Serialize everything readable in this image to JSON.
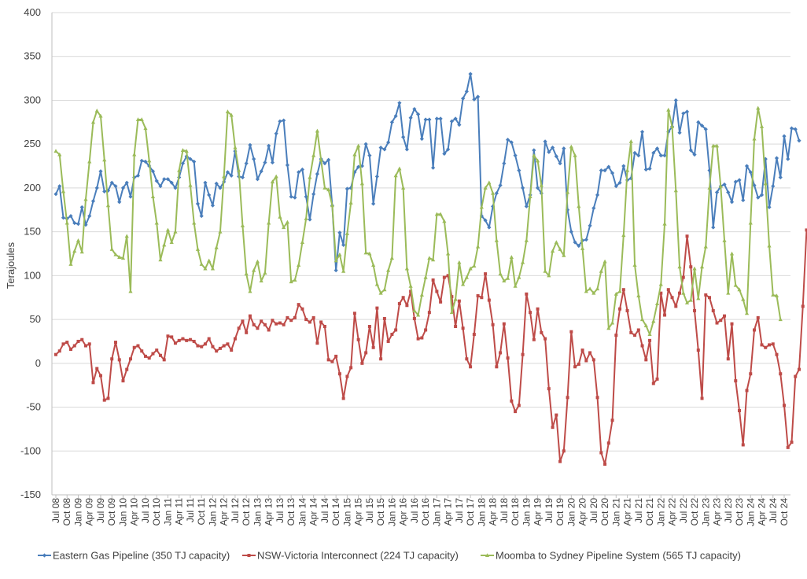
{
  "chart_data": {
    "type": "line",
    "ylabel": "Terajoules",
    "ylim": [
      -150,
      400
    ],
    "yticks": [
      400,
      350,
      300,
      250,
      200,
      150,
      100,
      50,
      0,
      -50,
      -100,
      -150
    ],
    "grid": "horizontal",
    "legend_position": "bottom",
    "x_tick_labels": [
      "Jul 08",
      "Oct 08",
      "Jan 09",
      "Apr 09",
      "Jul 09",
      "Oct 09",
      "Jan 10",
      "Apr 10",
      "Jul 10",
      "Oct 10",
      "Jan 11",
      "Apr 11",
      "Jul 11",
      "Oct 11",
      "Jan 12",
      "Apr 12",
      "Jul 12",
      "Oct 12",
      "Jan 13",
      "Apr 13",
      "Jul 13",
      "Oct 13",
      "Jan 14",
      "Apr 14",
      "Jul 14",
      "Oct 14",
      "Jan 15",
      "Apr 15",
      "Jul 15",
      "Oct 15",
      "Jan 16",
      "Apr 16",
      "Jul 16",
      "Oct 16",
      "Jan 17",
      "Apr 17",
      "Jul 17",
      "Oct 17",
      "Jan 18",
      "Apr 18",
      "Jul 18",
      "Oct 18",
      "Jan 19",
      "Apr 19",
      "Jul 19",
      "Oct 19",
      "Jan 20",
      "Apr 20",
      "Jul 20",
      "Oct 20",
      "Jan 21",
      "Apr 21",
      "Jul 21",
      "Oct 21",
      "Jan 22",
      "Apr 22",
      "Jul 22",
      "Oct 22",
      "Jan 23",
      "Apr 23",
      "Jul 23",
      "Oct 23",
      "Jan 24",
      "Apr 24",
      "Jul 24",
      "Oct 24"
    ],
    "series": [
      {
        "name": "Eastern Gas Pipeline (350 TJ capacity)",
        "color": "#4a7ebb",
        "marker": "diamond",
        "values": [
          193,
          202,
          166,
          165,
          168,
          160,
          159,
          178,
          158,
          168,
          185,
          200,
          219,
          196,
          197,
          206,
          202,
          184,
          200,
          206,
          190,
          212,
          214,
          231,
          230,
          225,
          219,
          208,
          202,
          210,
          210,
          206,
          200,
          212,
          228,
          236,
          233,
          230,
          182,
          168,
          206,
          192,
          180,
          205,
          200,
          207,
          218,
          214,
          242,
          213,
          212,
          228,
          249,
          233,
          210,
          219,
          229,
          248,
          229,
          262,
          276,
          277,
          226,
          190,
          189,
          218,
          221,
          190,
          164,
          193,
          216,
          233,
          228,
          232,
          180,
          106,
          149,
          135,
          199,
          200,
          218,
          224,
          225,
          250,
          237,
          182,
          213,
          246,
          244,
          252,
          275,
          282,
          297,
          258,
          244,
          280,
          290,
          284,
          256,
          278,
          278,
          223,
          279,
          279,
          239,
          244,
          276,
          279,
          272,
          302,
          310,
          330,
          301,
          304,
          168,
          163,
          155,
          179,
          194,
          203,
          228,
          255,
          252,
          237,
          220,
          200,
          179,
          192,
          243,
          200,
          194,
          253,
          241,
          246,
          236,
          228,
          245,
          175,
          150,
          138,
          134,
          140,
          141,
          157,
          177,
          192,
          220,
          220,
          224,
          217,
          202,
          206,
          225,
          209,
          211,
          240,
          237,
          264,
          221,
          222,
          240,
          245,
          237,
          237,
          264,
          270,
          300,
          263,
          285,
          287,
          243,
          238,
          275,
          271,
          267,
          220,
          155,
          195,
          202,
          204,
          195,
          184,
          207,
          209,
          186,
          225,
          218,
          203,
          189,
          192,
          233,
          178,
          202,
          234,
          212,
          259,
          233,
          268,
          267,
          254
        ]
      },
      {
        "name": "NSW-Victoria Interconnect (224 TJ capacity)",
        "color": "#be4b48",
        "marker": "square",
        "values": [
          10,
          14,
          22,
          24,
          16,
          20,
          25,
          27,
          20,
          22,
          -22,
          -6,
          -14,
          -42,
          -40,
          5,
          24,
          4,
          -20,
          -7,
          5,
          18,
          20,
          14,
          8,
          6,
          11,
          15,
          9,
          4,
          31,
          30,
          23,
          26,
          28,
          26,
          27,
          25,
          20,
          19,
          22,
          28,
          19,
          14,
          17,
          20,
          22,
          15,
          28,
          40,
          48,
          35,
          54,
          44,
          40,
          48,
          44,
          38,
          49,
          45,
          46,
          44,
          52,
          49,
          52,
          67,
          62,
          50,
          47,
          52,
          23,
          47,
          42,
          4,
          2,
          8,
          -12,
          -40,
          -15,
          -5,
          57,
          27,
          0,
          12,
          42,
          18,
          63,
          5,
          51,
          25,
          33,
          38,
          68,
          75,
          66,
          82,
          51,
          28,
          29,
          38,
          58,
          95,
          82,
          70,
          98,
          100,
          76,
          42,
          71,
          40,
          5,
          -4,
          33,
          77,
          75,
          102,
          72,
          44,
          -4,
          12,
          45,
          6,
          -43,
          -55,
          -48,
          10,
          79,
          58,
          27,
          62,
          35,
          28,
          -29,
          -73,
          -59,
          -112,
          -100,
          -39,
          36,
          -4,
          -1,
          15,
          3,
          12,
          4,
          -39,
          -102,
          -115,
          -91,
          -65,
          32,
          62,
          84,
          60,
          35,
          32,
          38,
          20,
          4,
          26,
          -23,
          -18,
          80,
          55,
          84,
          75,
          65,
          80,
          98,
          145,
          110,
          60,
          15,
          -40,
          78,
          75,
          60,
          46,
          49,
          54,
          5,
          45,
          -20,
          -54,
          -93,
          -31,
          -12,
          38,
          52,
          21,
          18,
          21,
          22,
          10,
          -12,
          -48,
          -96,
          -90,
          -15,
          -7,
          65,
          152,
          150
        ]
      },
      {
        "name": "Moomba to Sydney Pipeline System (565 TJ capacity)",
        "color": "#9bbb59",
        "marker": "triangle",
        "values": [
          242,
          238,
          196,
          160,
          113,
          128,
          140,
          127,
          187,
          230,
          275,
          288,
          282,
          232,
          180,
          130,
          124,
          121,
          120,
          145,
          82,
          238,
          278,
          278,
          268,
          231,
          190,
          160,
          118,
          135,
          152,
          138,
          150,
          220,
          243,
          242,
          203,
          160,
          130,
          113,
          108,
          117,
          108,
          132,
          150,
          213,
          287,
          283,
          246,
          220,
          157,
          102,
          82,
          106,
          116,
          94,
          103,
          160,
          207,
          213,
          167,
          155,
          161,
          93,
          95,
          112,
          138,
          165,
          212,
          237,
          265,
          232,
          200,
          198,
          180,
          117,
          124,
          105,
          148,
          183,
          238,
          248,
          205,
          126,
          125,
          112,
          90,
          80,
          84,
          106,
          120,
          214,
          222,
          200,
          108,
          88,
          60,
          55,
          78,
          98,
          120,
          118,
          170,
          170,
          162,
          125,
          58,
          73,
          115,
          90,
          98,
          108,
          111,
          133,
          178,
          200,
          206,
          194,
          140,
          102,
          94,
          97,
          121,
          88,
          98,
          115,
          140,
          190,
          237,
          231,
          203,
          105,
          100,
          128,
          138,
          130,
          123,
          195,
          247,
          237,
          179,
          131,
          82,
          85,
          80,
          85,
          105,
          116,
          40,
          46,
          79,
          82,
          146,
          220,
          253,
          112,
          77,
          50,
          43,
          33,
          48,
          68,
          90,
          159,
          289,
          270,
          197,
          110,
          80,
          69,
          72,
          108,
          74,
          110,
          133,
          200,
          248,
          248,
          202,
          140,
          80,
          125,
          89,
          84,
          73,
          57,
          160,
          256,
          291,
          270,
          205,
          134,
          78,
          77,
          50
        ]
      }
    ]
  }
}
